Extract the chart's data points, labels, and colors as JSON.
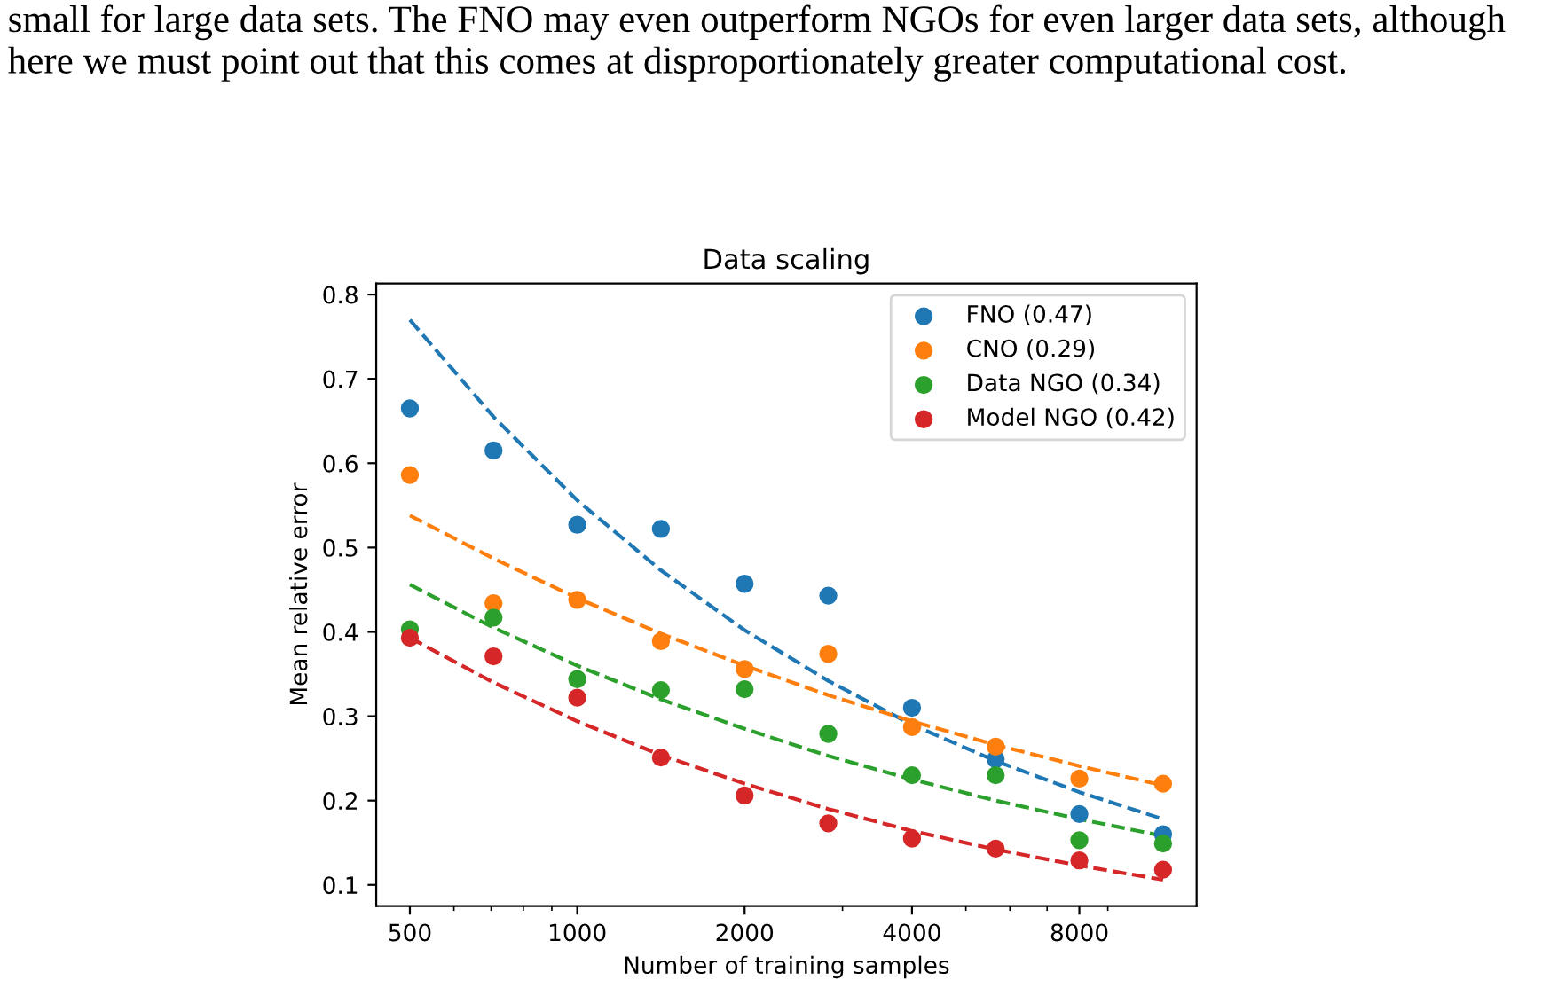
{
  "chart_data": {
    "type": "scatter",
    "title": "Data scaling",
    "xlabel": "Number of training samples",
    "ylabel": "Mean relative error",
    "annotations": [
      "small for large data sets. The FNO may even outperform NGOs for even larger data sets, although here we must point out that this comes at disproportionately greater computational cost."
    ],
    "log": "x",
    "xlim": [
      435,
      13000
    ],
    "xticks": [
      500,
      1000,
      2000,
      4000,
      8000
    ],
    "ylim": [
      0.075,
      0.813
    ],
    "yticks": [
      0.1,
      0.2,
      0.3,
      0.4,
      0.5,
      0.6,
      0.7,
      0.8
    ],
    "grid": false,
    "legend": "top right",
    "marker": "circle",
    "x": [
      500,
      707,
      1000,
      1414,
      2000,
      2828,
      4000,
      5657,
      8000,
      11314
    ],
    "series": [
      {
        "name": "FNO (0.47)",
        "color": "#1f77b4",
        "values": [
          0.665,
          0.615,
          0.527,
          0.522,
          0.457,
          0.443,
          0.31,
          0.249,
          0.184,
          0.16
        ]
      },
      {
        "name": "CNO (0.29)",
        "color": "#ff7f0e",
        "values": [
          0.586,
          0.434,
          0.438,
          0.389,
          0.356,
          0.374,
          0.287,
          0.264,
          0.226,
          0.22
        ]
      },
      {
        "name": "Data NGO (0.34)",
        "color": "#2ca02c",
        "values": [
          0.403,
          0.417,
          0.344,
          0.331,
          0.332,
          0.279,
          0.23,
          0.23,
          0.153,
          0.149
        ]
      },
      {
        "name": "Model NGO (0.42)",
        "color": "#d62728",
        "values": [
          0.393,
          0.371,
          0.322,
          0.251,
          0.206,
          0.173,
          0.155,
          0.143,
          0.129,
          0.118
        ]
      },
      {
        "type": "line",
        "line_style": "dashed",
        "marker": "none",
        "color": "#1f77b4",
        "x": [
          500,
          707,
          1000,
          1414,
          2000,
          2828,
          4000,
          5657,
          8000,
          11314
        ],
        "values": [
          0.77,
          0.655,
          0.556,
          0.473,
          0.402,
          0.342,
          0.29,
          0.247,
          0.21,
          0.178
        ]
      },
      {
        "type": "line",
        "line_style": "dashed",
        "marker": "none",
        "color": "#ff7f0e",
        "x": [
          500,
          707,
          1000,
          1414,
          2000,
          2828,
          4000,
          5657,
          8000,
          11314
        ],
        "values": [
          0.538,
          0.487,
          0.44,
          0.398,
          0.36,
          0.325,
          0.294,
          0.266,
          0.241,
          0.218
        ]
      },
      {
        "type": "line",
        "line_style": "dashed",
        "marker": "none",
        "color": "#2ca02c",
        "x": [
          500,
          707,
          1000,
          1414,
          2000,
          2828,
          4000,
          5657,
          8000,
          11314
        ],
        "values": [
          0.456,
          0.405,
          0.36,
          0.32,
          0.285,
          0.253,
          0.225,
          0.2,
          0.178,
          0.158
        ]
      },
      {
        "type": "line",
        "line_style": "dashed",
        "marker": "none",
        "color": "#d62728",
        "x": [
          500,
          707,
          1000,
          1414,
          2000,
          2828,
          4000,
          5657,
          8000,
          11314
        ],
        "values": [
          0.393,
          0.34,
          0.294,
          0.254,
          0.22,
          0.19,
          0.164,
          0.142,
          0.123,
          0.106
        ]
      }
    ]
  }
}
